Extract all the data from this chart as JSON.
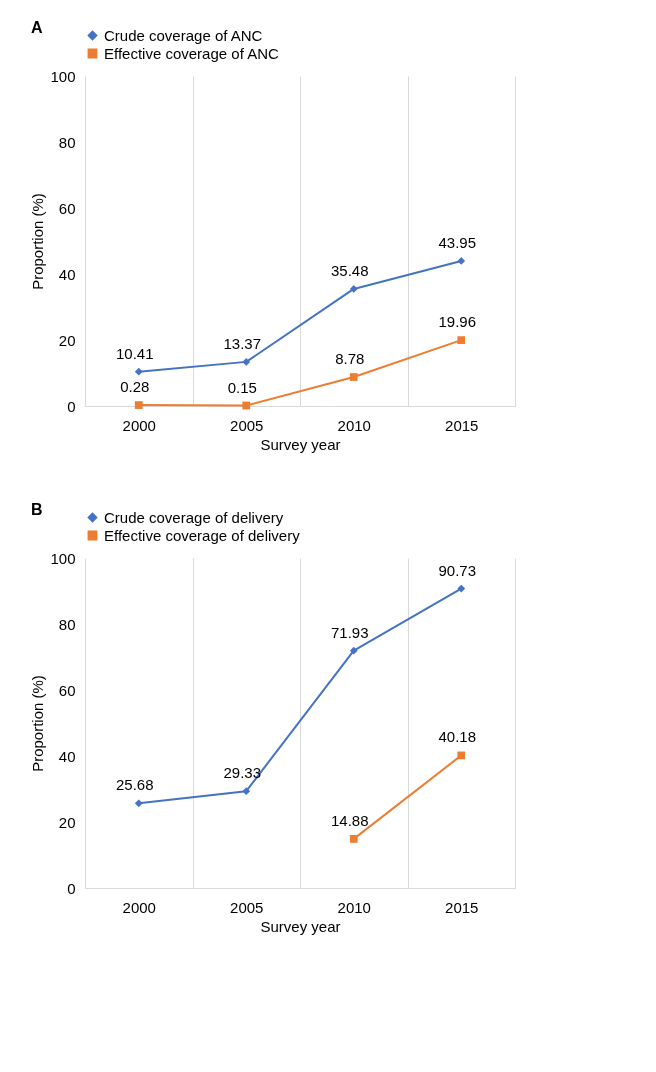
{
  "chart_data": [
    {
      "type": "line",
      "title": "A",
      "xlabel": "Survey year",
      "ylabel": "Proportion (%)",
      "categories": [
        "2000",
        "2005",
        "2010",
        "2015"
      ],
      "ylim": [
        0,
        100
      ],
      "yticks": [
        0,
        20,
        40,
        60,
        80,
        100
      ],
      "grid": "x",
      "legend": "top",
      "data_labels": true,
      "series": [
        {
          "name": "Crude coverage of ANC",
          "color": "#4472c4",
          "marker": "diamond",
          "values": [
            10.41,
            13.37,
            35.48,
            43.95
          ]
        },
        {
          "name": "Effective coverage of ANC",
          "color": "#ed7d31",
          "marker": "square",
          "values": [
            0.28,
            0.15,
            8.78,
            19.96
          ]
        }
      ]
    },
    {
      "type": "line",
      "title": "B",
      "xlabel": "Survey year",
      "ylabel": "Proportion (%)",
      "categories": [
        "2000",
        "2005",
        "2010",
        "2015"
      ],
      "ylim": [
        0,
        100
      ],
      "yticks": [
        0,
        20,
        40,
        60,
        80,
        100
      ],
      "grid": "x",
      "legend": "top",
      "data_labels": true,
      "series": [
        {
          "name": "Crude coverage of delivery",
          "color": "#4472c4",
          "marker": "diamond",
          "values": [
            25.68,
            29.33,
            71.93,
            90.73
          ]
        },
        {
          "name": "Effective coverage of delivery",
          "color": "#ed7d31",
          "marker": "square",
          "values": [
            null,
            null,
            14.88,
            40.18
          ]
        }
      ]
    }
  ]
}
